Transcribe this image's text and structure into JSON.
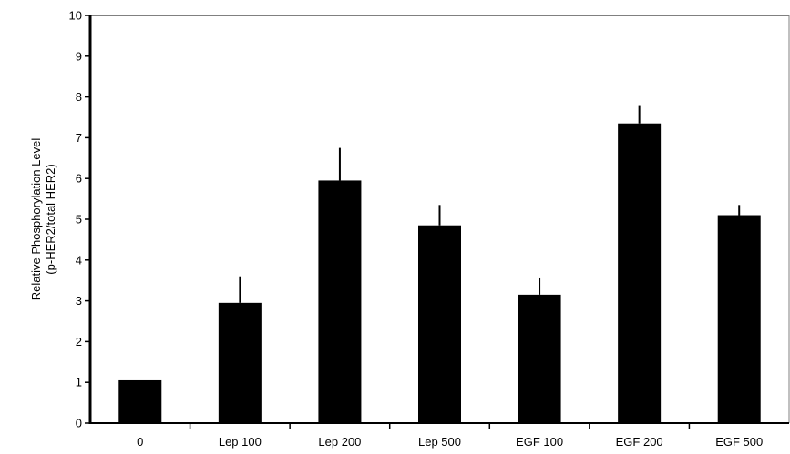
{
  "chart_data": {
    "type": "bar",
    "title": "",
    "ylabel_lines": [
      "Relative Phosphorylation Level",
      "(p-HER2/total HER2)"
    ],
    "xlabel": "",
    "categories": [
      "0",
      "Lep 100",
      "Lep 200",
      "Lep 500",
      "EGF 100",
      "EGF 200",
      "EGF 500"
    ],
    "values": [
      1.05,
      2.95,
      5.95,
      4.85,
      3.15,
      7.35,
      5.1
    ],
    "error_plus": [
      0.0,
      0.65,
      0.8,
      0.5,
      0.4,
      0.45,
      0.25
    ],
    "ylim": [
      0,
      10
    ],
    "yticks": [
      0,
      1,
      2,
      3,
      4,
      5,
      6,
      7,
      8,
      9,
      10
    ],
    "grid": false,
    "legend": "none",
    "bar_color": "#000000",
    "axis_color": "#000000",
    "frame_color": "#808080"
  }
}
